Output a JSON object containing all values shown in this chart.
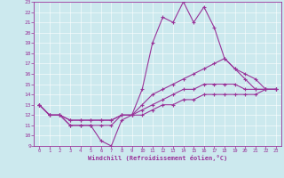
{
  "xlabel": "Windchill (Refroidissement éolien,°C)",
  "bg_color": "#cce9ee",
  "line_color": "#993399",
  "grid_color": "#ffffff",
  "xlim": [
    -0.5,
    23.5
  ],
  "ylim": [
    9,
    23
  ],
  "xticks": [
    0,
    1,
    2,
    3,
    4,
    5,
    6,
    7,
    8,
    9,
    10,
    11,
    12,
    13,
    14,
    15,
    16,
    17,
    18,
    19,
    20,
    21,
    22,
    23
  ],
  "yticks": [
    9,
    10,
    11,
    12,
    13,
    14,
    15,
    16,
    17,
    18,
    19,
    20,
    21,
    22,
    23
  ],
  "series1_x": [
    0,
    1,
    2,
    3,
    4,
    5,
    6,
    7,
    8,
    9,
    10,
    11,
    12,
    13,
    14,
    15,
    16,
    17,
    18,
    19,
    20,
    21,
    22,
    23
  ],
  "series1_y": [
    13,
    12,
    12,
    11,
    11,
    11,
    9.5,
    9,
    11.5,
    12,
    14.5,
    19,
    21.5,
    21,
    23,
    21,
    22.5,
    20.5,
    17.5,
    16.5,
    15.5,
    14.5,
    14.5,
    14.5
  ],
  "series2_x": [
    0,
    1,
    2,
    3,
    4,
    5,
    6,
    7,
    8,
    9,
    10,
    11,
    12,
    13,
    14,
    15,
    16,
    17,
    18,
    19,
    20,
    21,
    22,
    23
  ],
  "series2_y": [
    13,
    12,
    12,
    11,
    11,
    11,
    11,
    11,
    12,
    12,
    13,
    14,
    14.5,
    15,
    15.5,
    16,
    16.5,
    17,
    17.5,
    16.5,
    16,
    15.5,
    14.5,
    14.5
  ],
  "series3_x": [
    0,
    1,
    2,
    3,
    4,
    5,
    6,
    7,
    8,
    9,
    10,
    11,
    12,
    13,
    14,
    15,
    16,
    17,
    18,
    19,
    20,
    21,
    22,
    23
  ],
  "series3_y": [
    13,
    12,
    12,
    11.5,
    11.5,
    11.5,
    11.5,
    11.5,
    12,
    12,
    12.5,
    13,
    13.5,
    14,
    14.5,
    14.5,
    15,
    15,
    15,
    15,
    14.5,
    14.5,
    14.5,
    14.5
  ],
  "series4_x": [
    0,
    1,
    2,
    3,
    4,
    5,
    6,
    7,
    8,
    9,
    10,
    11,
    12,
    13,
    14,
    15,
    16,
    17,
    18,
    19,
    20,
    21,
    22,
    23
  ],
  "series4_y": [
    13,
    12,
    12,
    11.5,
    11.5,
    11.5,
    11.5,
    11.5,
    12,
    12,
    12,
    12.5,
    13,
    13,
    13.5,
    13.5,
    14,
    14,
    14,
    14,
    14,
    14,
    14.5,
    14.5
  ]
}
